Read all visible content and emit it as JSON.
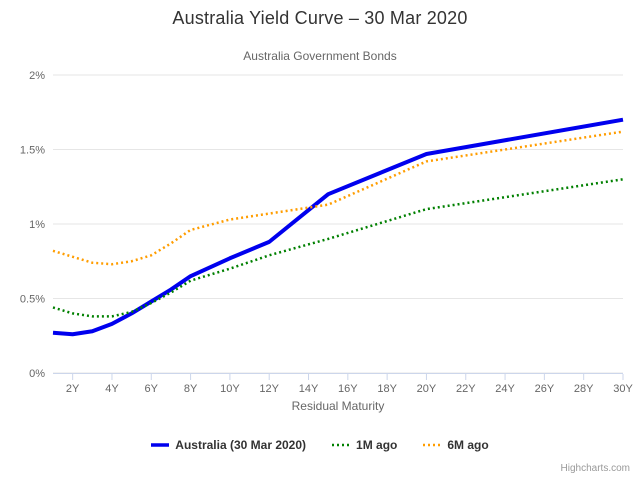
{
  "header": {
    "title": "Australia Yield Curve – 30 Mar 2020",
    "subtitle": "Australia Government Bonds"
  },
  "credits": "Highcharts.com",
  "chart_data": {
    "type": "line",
    "title": "Australia Yield Curve – 30 Mar 2020",
    "subtitle": "Australia Government Bonds",
    "xlabel": "Residual Maturity",
    "ylabel": "",
    "xlim": [
      1,
      30
    ],
    "ylim": [
      0,
      2
    ],
    "grid": true,
    "legend_position": "bottom",
    "x_ticks": [
      {
        "value": 2,
        "label": "2Y"
      },
      {
        "value": 4,
        "label": "4Y"
      },
      {
        "value": 6,
        "label": "6Y"
      },
      {
        "value": 8,
        "label": "8Y"
      },
      {
        "value": 10,
        "label": "10Y"
      },
      {
        "value": 12,
        "label": "12Y"
      },
      {
        "value": 14,
        "label": "14Y"
      },
      {
        "value": 16,
        "label": "16Y"
      },
      {
        "value": 18,
        "label": "18Y"
      },
      {
        "value": 20,
        "label": "20Y"
      },
      {
        "value": 22,
        "label": "22Y"
      },
      {
        "value": 24,
        "label": "24Y"
      },
      {
        "value": 26,
        "label": "26Y"
      },
      {
        "value": 28,
        "label": "28Y"
      },
      {
        "value": 30,
        "label": "30Y"
      }
    ],
    "y_ticks": [
      {
        "value": 0,
        "label": "0%"
      },
      {
        "value": 0.5,
        "label": "0.5%"
      },
      {
        "value": 1,
        "label": "1%"
      },
      {
        "value": 1.5,
        "label": "1.5%"
      },
      {
        "value": 2,
        "label": "2%"
      }
    ],
    "x": [
      1,
      2,
      3,
      4,
      5,
      6,
      7,
      8,
      10,
      12,
      15,
      20,
      30
    ],
    "series": [
      {
        "name": "Australia (30 Mar 2020)",
        "color": "#0000ee",
        "style": "solid",
        "values": [
          0.27,
          0.26,
          0.28,
          0.33,
          0.4,
          0.48,
          0.56,
          0.65,
          0.77,
          0.88,
          1.2,
          1.47,
          1.7
        ]
      },
      {
        "name": "1M ago",
        "color": "#008000",
        "style": "dotted",
        "values": [
          0.44,
          0.4,
          0.38,
          0.38,
          0.41,
          0.47,
          0.54,
          0.62,
          0.7,
          0.79,
          0.9,
          1.1,
          1.3
        ]
      },
      {
        "name": "6M ago",
        "color": "#ff9d00",
        "style": "dotted",
        "values": [
          0.82,
          0.78,
          0.74,
          0.73,
          0.75,
          0.79,
          0.87,
          0.96,
          1.03,
          1.07,
          1.13,
          1.42,
          1.62
        ]
      }
    ]
  }
}
